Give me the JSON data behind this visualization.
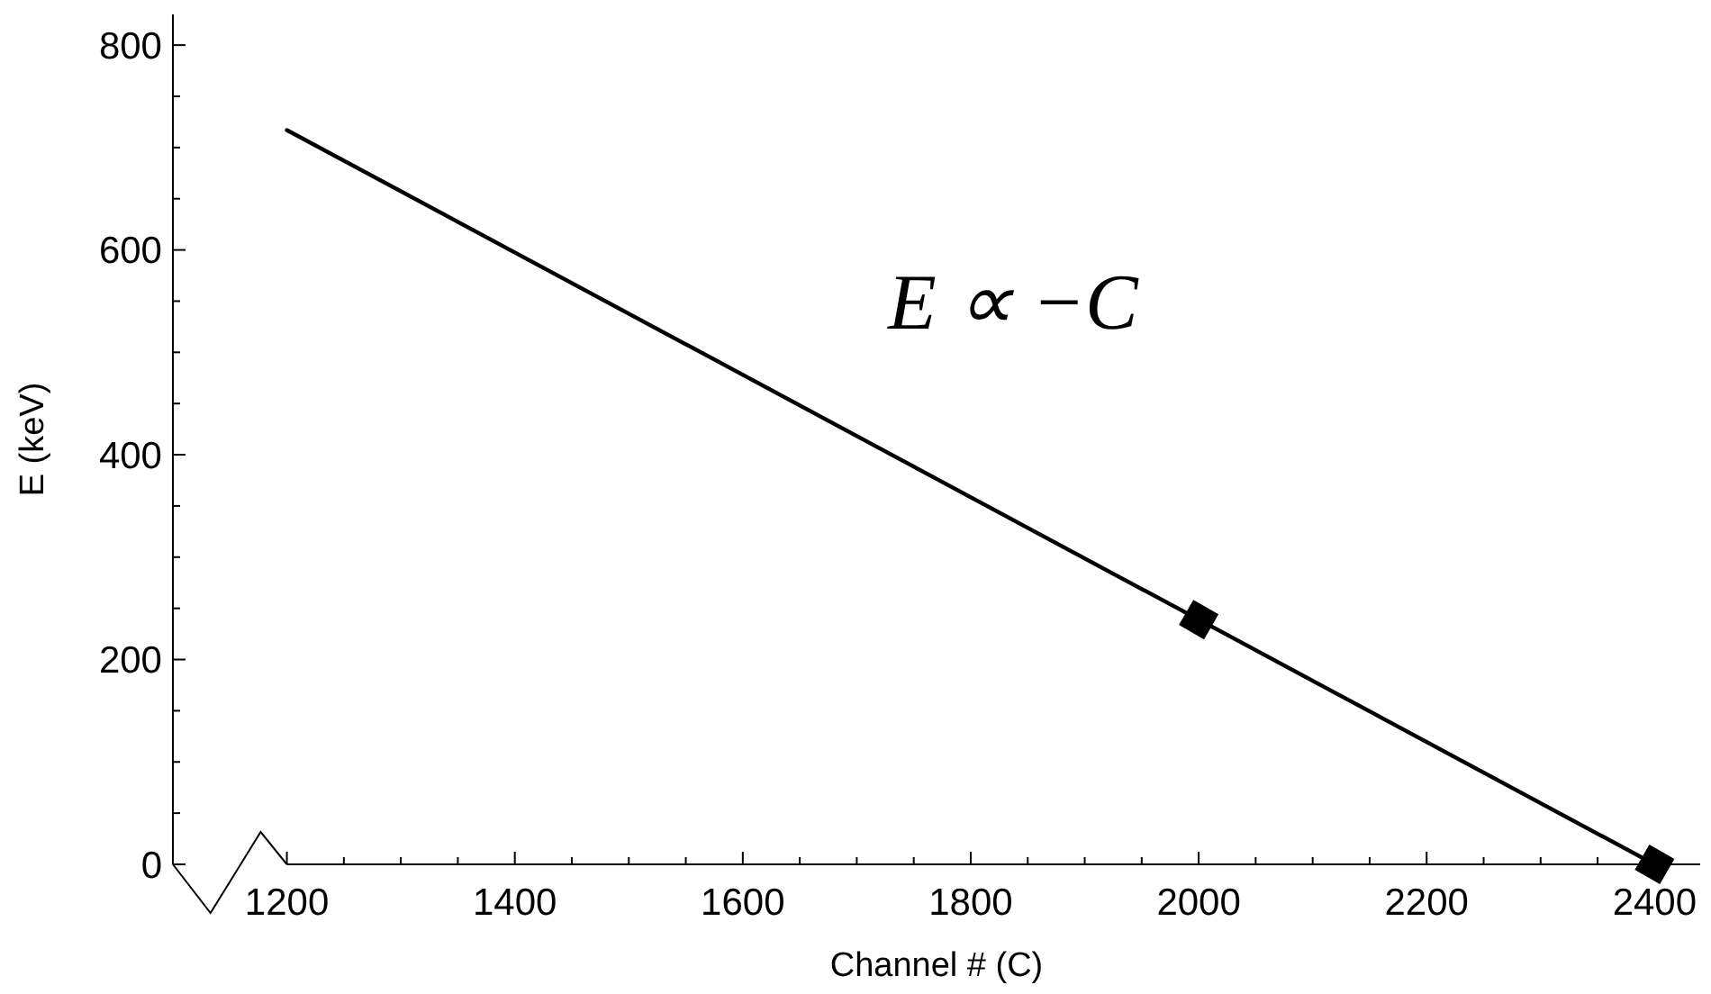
{
  "chart_data": {
    "type": "line",
    "xlabel": "Channel # (C)",
    "ylabel": "E (keV)",
    "annotations": [
      "E ∝ −C"
    ],
    "xlim": [
      1100,
      2440
    ],
    "ylim": [
      0,
      830
    ],
    "xticks": [
      1200,
      {
        "value": 1250,
        "label": null
      },
      {
        "value": 1300,
        "label": null
      },
      {
        "value": 1350,
        "label": null
      },
      1400,
      {
        "value": 1450,
        "label": null
      },
      {
        "value": 1500,
        "label": null
      },
      {
        "value": 1550,
        "label": null
      },
      1600,
      {
        "value": 1650,
        "label": null
      },
      {
        "value": 1700,
        "label": null
      },
      {
        "value": 1750,
        "label": null
      },
      1800,
      {
        "value": 1850,
        "label": null
      },
      {
        "value": 1900,
        "label": null
      },
      {
        "value": 1950,
        "label": null
      },
      2000,
      {
        "value": 2050,
        "label": null
      },
      {
        "value": 2100,
        "label": null
      },
      {
        "value": 2150,
        "label": null
      },
      2200,
      {
        "value": 2250,
        "label": null
      },
      {
        "value": 2300,
        "label": null
      },
      {
        "value": 2350,
        "label": null
      },
      2400
    ],
    "yticks": [
      0,
      {
        "value": 50,
        "label": null
      },
      {
        "value": 100,
        "label": null
      },
      {
        "value": 150,
        "label": null
      },
      200,
      {
        "value": 250,
        "label": null
      },
      {
        "value": 300,
        "label": null
      },
      {
        "value": 350,
        "label": null
      },
      400,
      {
        "value": 450,
        "label": null
      },
      {
        "value": 500,
        "label": null
      },
      {
        "value": 550,
        "label": null
      },
      600,
      {
        "value": 650,
        "label": null
      },
      {
        "value": 700,
        "label": null
      },
      {
        "value": 750,
        "label": null
      },
      800
    ],
    "grid": false,
    "series": [
      {
        "color": "#000000",
        "x": [
          1200,
          2400
        ],
        "values": [
          717,
          0
        ],
        "marker": "none"
      },
      {
        "type": "scatter",
        "color": "#000000",
        "x": [
          2000,
          2400
        ],
        "values": [
          239,
          0
        ],
        "marker": "diamond"
      }
    ]
  }
}
